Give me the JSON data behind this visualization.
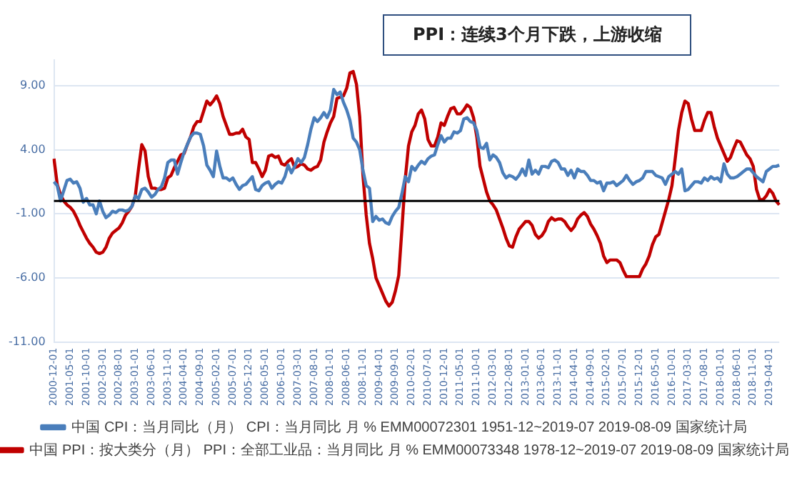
{
  "chart_data": {
    "type": "line",
    "title": "PPI：连续3个月下跌，上游收缩",
    "categories": [
      "2000-12-01",
      null,
      null,
      null,
      null,
      "2001-05-01",
      null,
      null,
      null,
      null,
      "2001-10-01",
      null,
      null,
      null,
      null,
      "2002-03-01",
      null,
      null,
      null,
      null,
      "2002-08-01",
      null,
      null,
      null,
      null,
      "2003-01-01",
      null,
      null,
      null,
      null,
      "2003-06-01",
      null,
      null,
      null,
      null,
      "2003-11-01",
      null,
      null,
      null,
      null,
      "2004-04-01",
      null,
      null,
      null,
      null,
      "2004-09-01",
      null,
      null,
      null,
      null,
      "2005-02-01",
      null,
      null,
      null,
      null,
      "2005-07-01",
      null,
      null,
      null,
      null,
      "2005-12-01",
      null,
      null,
      null,
      null,
      "2006-05-01",
      null,
      null,
      null,
      null,
      "2006-10-01",
      null,
      null,
      null,
      null,
      "2007-03-01",
      null,
      null,
      null,
      null,
      "2007-08-01",
      null,
      null,
      null,
      null,
      "2008-01-01",
      null,
      null,
      null,
      null,
      "2008-06-01",
      null,
      null,
      null,
      null,
      "2008-11-01",
      null,
      null,
      null,
      null,
      "2009-04-01",
      null,
      null,
      null,
      null,
      "2009-09-01",
      null,
      null,
      null,
      null,
      "2010-02-01",
      null,
      null,
      null,
      null,
      "2010-07-01",
      null,
      null,
      null,
      null,
      "2010-12-01",
      null,
      null,
      null,
      null,
      "2011-05-01",
      null,
      null,
      null,
      null,
      "2011-10-01",
      null,
      null,
      null,
      null,
      "2012-03-01",
      null,
      null,
      null,
      null,
      "2012-08-01",
      null,
      null,
      null,
      null,
      "2013-01-01",
      null,
      null,
      null,
      null,
      "2013-06-01",
      null,
      null,
      null,
      null,
      "2013-11-01",
      null,
      null,
      null,
      null,
      "2014-04-01",
      null,
      null,
      null,
      null,
      "2014-09-01",
      null,
      null,
      null,
      null,
      "2015-02-01",
      null,
      null,
      null,
      null,
      "2015-07-01",
      null,
      null,
      null,
      null,
      "2015-12-01",
      null,
      null,
      null,
      null,
      "2016-05-01",
      null,
      null,
      null,
      null,
      "2016-10-01",
      null,
      null,
      null,
      null,
      "2017-03-01",
      null,
      null,
      null,
      null,
      "2017-08-01",
      null,
      null,
      null,
      null,
      "2018-01-01",
      null,
      null,
      null,
      null,
      "2018-06-01",
      null,
      null,
      null,
      null,
      "2018-11-01",
      null,
      null,
      null,
      null,
      "2019-04-01",
      null,
      null,
      null
    ],
    "series": [
      {
        "name": "中国 CPI：当月同比（月） CPI：当月同比 月 % EMM00072301 1951-12~2019-07 2019-08-09 国家统计局",
        "color": "#4a7ebb",
        "values": [
          1.5,
          1.2,
          0.0,
          0.8,
          1.6,
          1.7,
          1.4,
          1.5,
          1.0,
          -0.1,
          0.2,
          -0.3,
          -0.3,
          -1.0,
          0.0,
          -0.8,
          -1.3,
          -1.1,
          -0.8,
          -0.9,
          -0.7,
          -0.7,
          -0.8,
          -0.7,
          -0.4,
          0.4,
          0.2,
          0.9,
          1.0,
          0.7,
          0.3,
          0.5,
          0.9,
          1.1,
          1.8,
          3.0,
          3.2,
          3.2,
          2.1,
          3.0,
          3.8,
          4.4,
          5.0,
          5.3,
          5.3,
          5.2,
          4.3,
          2.8,
          2.4,
          1.9,
          3.9,
          2.7,
          1.8,
          1.8,
          1.6,
          1.8,
          1.3,
          0.9,
          1.2,
          1.3,
          1.6,
          1.9,
          0.9,
          0.8,
          1.2,
          1.4,
          1.5,
          1.0,
          1.3,
          1.5,
          1.4,
          1.9,
          2.8,
          2.2,
          2.7,
          3.3,
          3.0,
          3.4,
          4.4,
          5.6,
          6.5,
          6.2,
          6.5,
          6.9,
          6.5,
          7.1,
          8.7,
          8.3,
          8.5,
          7.7,
          7.1,
          6.3,
          4.9,
          4.6,
          4.0,
          2.4,
          1.2,
          1.0,
          -1.6,
          -1.2,
          -1.5,
          -1.4,
          -1.7,
          -1.8,
          -1.2,
          -0.8,
          -0.5,
          0.6,
          1.9,
          1.5,
          2.7,
          2.4,
          2.8,
          3.1,
          2.9,
          3.3,
          3.5,
          3.6,
          4.4,
          5.1,
          4.6,
          4.9,
          4.9,
          5.4,
          5.3,
          5.5,
          6.4,
          6.5,
          6.2,
          6.1,
          5.5,
          4.2,
          4.1,
          4.5,
          3.2,
          3.6,
          3.4,
          3.0,
          2.2,
          1.8,
          2.0,
          1.9,
          1.7,
          2.0,
          2.5,
          2.0,
          3.2,
          2.1,
          2.4,
          2.1,
          2.7,
          2.7,
          2.6,
          3.1,
          3.2,
          3.0,
          2.5,
          2.5,
          2.0,
          2.4,
          1.8,
          2.5,
          2.3,
          2.3,
          2.0,
          1.6,
          1.6,
          1.4,
          1.5,
          0.8,
          1.4,
          1.4,
          1.5,
          1.2,
          1.4,
          1.6,
          2.0,
          1.6,
          1.3,
          1.5,
          1.6,
          1.8,
          2.3,
          2.3,
          2.3,
          2.0,
          1.9,
          1.8,
          1.3,
          1.9,
          2.1,
          2.3,
          2.1,
          2.5,
          0.8,
          0.9,
          1.2,
          1.5,
          1.5,
          1.4,
          1.8,
          1.6,
          1.9,
          1.7,
          1.8,
          1.5,
          2.9,
          2.1,
          1.8,
          1.8,
          1.9,
          2.1,
          2.3,
          2.5,
          2.5,
          2.2,
          1.9,
          1.7,
          1.5,
          2.3,
          2.5,
          2.7,
          2.7,
          2.8
        ]
      },
      {
        "name": "中国 PPI：按大类分（月） PPI：全部工业品：当月同比 月 % EMM00073348 1978-12~2019-07 2019-08-09 国家统计局",
        "color": "#c00000",
        "values": [
          3.3,
          1.3,
          0.5,
          0.0,
          -0.3,
          -0.5,
          -0.8,
          -1.3,
          -1.9,
          -2.4,
          -2.9,
          -3.3,
          -3.6,
          -4.0,
          -4.1,
          -4.0,
          -3.6,
          -2.9,
          -2.5,
          -2.3,
          -2.1,
          -1.7,
          -1.1,
          -0.8,
          -0.4,
          0.4,
          2.5,
          4.4,
          3.9,
          1.9,
          1.0,
          1.0,
          0.9,
          0.9,
          1.0,
          1.8,
          2.0,
          2.6,
          3.1,
          3.6,
          3.7,
          4.4,
          5.0,
          5.8,
          6.2,
          6.2,
          7.0,
          7.8,
          7.5,
          7.8,
          8.2,
          7.6,
          6.6,
          5.9,
          5.2,
          5.2,
          5.3,
          5.3,
          5.6,
          5.0,
          4.8,
          3.0,
          3.0,
          2.5,
          1.9,
          2.4,
          3.5,
          3.6,
          3.4,
          3.5,
          2.9,
          2.8,
          3.1,
          3.3,
          2.6,
          2.7,
          2.9,
          2.8,
          2.5,
          2.4,
          2.6,
          2.7,
          3.2,
          4.6,
          5.4,
          6.1,
          6.6,
          8.0,
          8.1,
          8.2,
          8.8,
          10.0,
          10.1,
          9.1,
          6.6,
          2.0,
          -1.1,
          -3.3,
          -4.5,
          -6.0,
          -6.6,
          -7.2,
          -7.8,
          -8.2,
          -7.9,
          -7.0,
          -5.8,
          -2.1,
          1.7,
          4.3,
          5.4,
          5.9,
          6.8,
          7.1,
          6.4,
          4.8,
          4.3,
          4.3,
          5.0,
          6.1,
          5.9,
          6.6,
          7.2,
          7.3,
          6.8,
          6.8,
          7.1,
          7.5,
          7.3,
          6.5,
          5.0,
          2.7,
          1.7,
          0.7,
          0.0,
          -0.3,
          -0.7,
          -1.4,
          -2.1,
          -2.9,
          -3.5,
          -3.6,
          -2.8,
          -2.2,
          -1.9,
          -1.6,
          -1.6,
          -1.9,
          -2.6,
          -2.9,
          -2.7,
          -2.3,
          -1.6,
          -1.3,
          -1.5,
          -1.4,
          -1.4,
          -1.6,
          -2.0,
          -2.3,
          -2.0,
          -1.4,
          -1.1,
          -0.9,
          -1.2,
          -1.8,
          -2.2,
          -2.7,
          -3.3,
          -4.3,
          -4.8,
          -4.6,
          -4.6,
          -4.6,
          -4.8,
          -5.4,
          -5.9,
          -5.9,
          -5.9,
          -5.9,
          -5.9,
          -5.3,
          -4.9,
          -4.3,
          -3.4,
          -2.8,
          -2.6,
          -1.7,
          -0.8,
          0.1,
          1.2,
          3.3,
          5.5,
          6.9,
          7.8,
          7.6,
          6.4,
          5.5,
          5.5,
          5.5,
          6.3,
          6.9,
          6.9,
          5.8,
          4.9,
          4.3,
          3.7,
          3.1,
          3.4,
          4.1,
          4.7,
          4.6,
          4.1,
          3.6,
          3.3,
          2.7,
          0.9,
          0.1,
          0.1,
          0.4,
          0.9,
          0.6,
          0.0,
          -0.3
        ]
      }
    ],
    "ylim": [
      -11,
      11
    ],
    "yticks": [
      {
        "value": 9,
        "label": "9.00"
      },
      {
        "value": 4,
        "label": "4.00"
      },
      {
        "value": -1,
        "label": "-1.00"
      },
      {
        "value": -6,
        "label": "-6.00"
      },
      {
        "value": -11,
        "label": "-11.00"
      }
    ],
    "ref_lines": [
      {
        "axis": "y",
        "value": 0,
        "color": "#000000"
      }
    ],
    "grid": "y",
    "legend": "bottom",
    "marker": "none",
    "line_style": "solid"
  }
}
